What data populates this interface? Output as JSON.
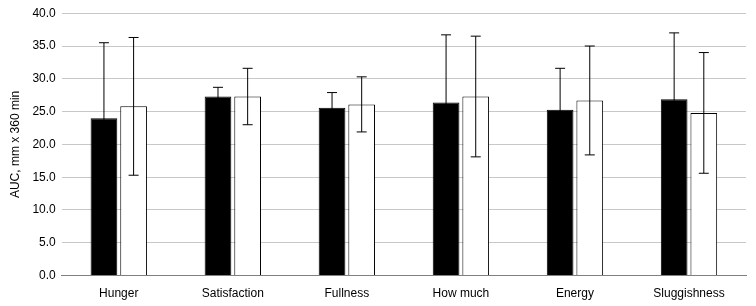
{
  "chart_data": {
    "type": "bar",
    "y_label": "AUC, mm x 360 min",
    "categories": [
      "Hunger",
      "Satisfaction",
      "Fullness",
      "How much",
      "Energy",
      "Sluggishness"
    ],
    "series": [
      {
        "color": "#000000",
        "values": [
          24.0,
          27.3,
          25.6,
          26.4,
          25.3,
          26.9
        ],
        "errors": [
          11.5,
          1.4,
          2.3,
          10.3,
          6.3,
          10.1
        ]
      },
      {
        "color": "#ffffff",
        "values": [
          25.8,
          27.3,
          26.1,
          27.3,
          26.7,
          24.8
        ],
        "errors": [
          10.5,
          4.3,
          4.2,
          9.2,
          8.3,
          9.2
        ]
      }
    ],
    "ylim": [
      0,
      40
    ],
    "yticks": [
      {
        "value": 0,
        "label": "0.0"
      },
      {
        "value": 5,
        "label": "5.0"
      },
      {
        "value": 10,
        "label": "10.0"
      },
      {
        "value": 15,
        "label": "15.0"
      },
      {
        "value": 20,
        "label": "20.0"
      },
      {
        "value": 25,
        "label": "25.0"
      },
      {
        "value": 30,
        "label": "30.0"
      },
      {
        "value": 35,
        "label": "35.0"
      },
      {
        "value": 40,
        "label": "40.0"
      }
    ],
    "grid": true
  }
}
